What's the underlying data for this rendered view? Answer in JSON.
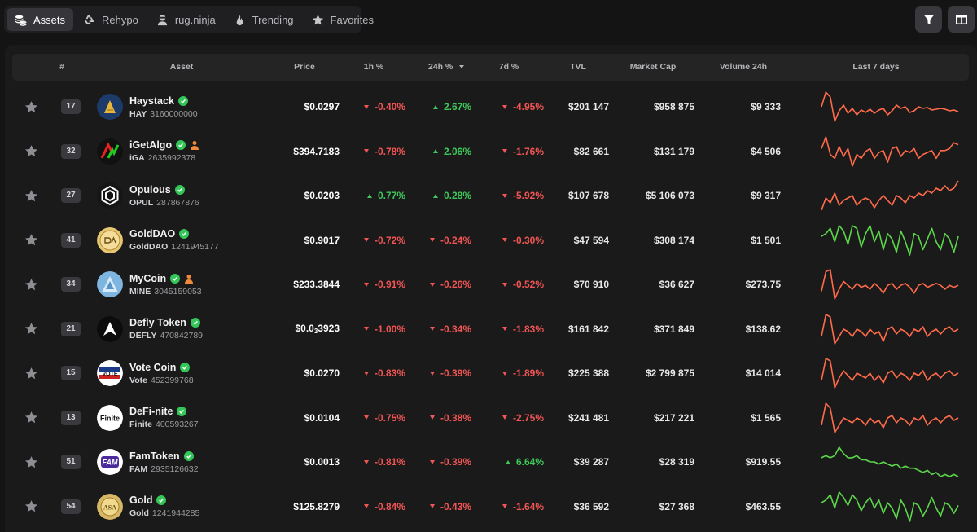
{
  "tabs": [
    {
      "label": "Assets",
      "icon": "coins-icon",
      "active": true
    },
    {
      "label": "Rehypo",
      "icon": "recycle-icon",
      "active": false
    },
    {
      "label": "rug.ninja",
      "icon": "ninja-icon",
      "active": false
    },
    {
      "label": "Trending",
      "icon": "flame-icon",
      "active": false
    },
    {
      "label": "Favorites",
      "icon": "star-icon",
      "active": false
    }
  ],
  "toolbar": {
    "filter_icon": "filter-icon",
    "columns_icon": "columns-icon"
  },
  "table": {
    "headers": {
      "rank": "#",
      "asset": "Asset",
      "price": "Price",
      "h1": "1h %",
      "h24": "24h %",
      "d7": "7d %",
      "tvl": "TVL",
      "mcap": "Market Cap",
      "vol": "Volume 24h",
      "last7": "Last 7 days"
    },
    "rows": [
      {
        "rank": "17",
        "name": "Haystack",
        "ticker": "HAY",
        "id": "3160000000",
        "creator": false,
        "price": "$0.0297",
        "h1": "-0.40%",
        "h24": "2.67%",
        "d7": "-4.95%",
        "tvl": "$201 147",
        "mcap": "$958 875",
        "vol": "$9 333",
        "trend": "down",
        "spark": [
          40,
          22,
          28,
          58,
          45,
          38,
          48,
          42,
          50,
          44,
          47,
          43,
          48,
          44,
          42,
          50,
          45,
          38,
          42,
          40,
          47,
          45,
          40,
          42,
          41,
          44,
          43,
          42,
          43,
          45,
          44,
          46
        ]
      },
      {
        "rank": "32",
        "name": "iGetAlgo",
        "ticker": "iGA",
        "id": "2635992378",
        "creator": true,
        "price": "$394.7183",
        "h1": "-0.78%",
        "h24": "2.06%",
        "d7": "-1.76%",
        "tvl": "$82 661",
        "mcap": "$131 179",
        "vol": "$4 506",
        "trend": "down",
        "spark": [
          42,
          30,
          48,
          52,
          40,
          50,
          42,
          60,
          48,
          52,
          45,
          42,
          52,
          46,
          44,
          56,
          42,
          40,
          50,
          44,
          46,
          42,
          52,
          48,
          46,
          44,
          52,
          44,
          44,
          42,
          36,
          38
        ]
      },
      {
        "rank": "27",
        "name": "Opulous",
        "ticker": "OPUL",
        "id": "287867876",
        "creator": false,
        "price": "$0.0203",
        "h1": "0.77%",
        "h24": "0.28%",
        "d7": "-5.92%",
        "tvl": "$107 678",
        "mcap": "$5 106 073",
        "vol": "$9 317",
        "trend": "down",
        "spark": [
          48,
          38,
          42,
          34,
          44,
          40,
          38,
          36,
          44,
          40,
          38,
          40,
          46,
          40,
          36,
          40,
          44,
          36,
          38,
          42,
          36,
          38,
          34,
          36,
          32,
          34,
          30,
          32,
          28,
          32,
          30,
          24
        ]
      },
      {
        "rank": "41",
        "name": "GoldDAO",
        "ticker": "GoldDAO",
        "id": "1241945177",
        "creator": false,
        "price": "$0.9017",
        "h1": "-0.72%",
        "h24": "-0.24%",
        "d7": "-0.30%",
        "tvl": "$47 594",
        "mcap": "$308 174",
        "vol": "$1 501",
        "trend": "up",
        "spark": [
          38,
          36,
          32,
          42,
          30,
          34,
          44,
          30,
          32,
          46,
          36,
          30,
          42,
          34,
          48,
          36,
          40,
          50,
          34,
          42,
          52,
          36,
          38,
          48,
          40,
          32,
          42,
          48,
          36,
          40,
          50,
          38
        ]
      },
      {
        "rank": "34",
        "name": "MyCoin",
        "ticker": "MINE",
        "id": "3045159053",
        "creator": true,
        "price": "$233.3844",
        "h1": "-0.91%",
        "h24": "-0.26%",
        "d7": "-0.52%",
        "tvl": "$70 910",
        "mcap": "$36 627",
        "vol": "$273.75",
        "trend": "down",
        "spark": [
          50,
          30,
          28,
          58,
          48,
          40,
          44,
          48,
          42,
          46,
          44,
          48,
          42,
          46,
          52,
          44,
          42,
          48,
          44,
          42,
          46,
          52,
          44,
          42,
          46,
          44,
          42,
          44,
          48,
          44,
          46,
          44
        ]
      },
      {
        "rank": "21",
        "name": "Defly Token",
        "ticker": "DEFLY",
        "id": "470842789",
        "creator": false,
        "price": "$0.0<sub>3</sub>3923",
        "h1": "-1.00%",
        "h24": "-0.34%",
        "d7": "-1.83%",
        "tvl": "$161 842",
        "mcap": "$371 849",
        "vol": "$138.62",
        "trend": "down",
        "spark": [
          50,
          32,
          34,
          56,
          50,
          44,
          46,
          50,
          44,
          46,
          50,
          44,
          48,
          46,
          54,
          44,
          42,
          48,
          44,
          46,
          50,
          44,
          46,
          42,
          50,
          46,
          44,
          48,
          44,
          42,
          46,
          44
        ]
      },
      {
        "rank": "15",
        "name": "Vote Coin",
        "ticker": "Vote",
        "id": "452399768",
        "creator": false,
        "price": "$0.0270",
        "h1": "-0.83%",
        "h24": "-0.39%",
        "d7": "-1.89%",
        "tvl": "$225 388",
        "mcap": "$2 799 875",
        "vol": "$14 014",
        "trend": "down",
        "spark": [
          50,
          32,
          34,
          56,
          48,
          42,
          46,
          50,
          44,
          46,
          48,
          44,
          50,
          46,
          52,
          44,
          42,
          48,
          44,
          46,
          50,
          44,
          46,
          42,
          50,
          46,
          44,
          48,
          44,
          42,
          46,
          44
        ]
      },
      {
        "rank": "13",
        "name": "DeFi-nite",
        "ticker": "Finite",
        "id": "400593267",
        "creator": false,
        "price": "$0.0104",
        "h1": "-0.75%",
        "h24": "-0.38%",
        "d7": "-2.75%",
        "tvl": "$241 481",
        "mcap": "$217 221",
        "vol": "$1 565",
        "trend": "down",
        "spark": [
          50,
          32,
          36,
          56,
          50,
          44,
          46,
          48,
          44,
          46,
          50,
          44,
          48,
          46,
          52,
          44,
          42,
          48,
          44,
          46,
          50,
          44,
          46,
          42,
          50,
          46,
          44,
          48,
          44,
          42,
          46,
          44
        ]
      },
      {
        "rank": "51",
        "name": "FamToken",
        "ticker": "FAM",
        "id": "2935126632",
        "creator": false,
        "price": "$0.0013",
        "h1": "-0.81%",
        "h24": "-0.39%",
        "d7": "6.64%",
        "tvl": "$39 287",
        "mcap": "$28 319",
        "vol": "$919.55",
        "trend": "up",
        "spark": [
          30,
          28,
          30,
          28,
          20,
          26,
          30,
          30,
          28,
          32,
          32,
          34,
          34,
          36,
          34,
          36,
          38,
          36,
          40,
          38,
          40,
          40,
          42,
          44,
          42,
          46,
          44,
          48,
          46,
          48,
          46,
          48
        ]
      },
      {
        "rank": "54",
        "name": "Gold",
        "ticker": "Gold",
        "id": "1241944285",
        "creator": false,
        "price": "$125.8279",
        "h1": "-0.84%",
        "h24": "-0.43%",
        "d7": "-1.64%",
        "tvl": "$36 592",
        "mcap": "$27 368",
        "vol": "$463.55",
        "trend": "up",
        "spark": [
          36,
          34,
          30,
          40,
          28,
          32,
          38,
          30,
          34,
          42,
          36,
          32,
          40,
          34,
          44,
          36,
          40,
          48,
          34,
          40,
          50,
          36,
          38,
          46,
          40,
          32,
          40,
          46,
          36,
          38,
          44,
          38
        ]
      }
    ]
  },
  "colors": {
    "negative": "#f25555",
    "positive": "#3fc85a",
    "spark_down": "#ff6b4a",
    "spark_up": "#5cd64a"
  }
}
